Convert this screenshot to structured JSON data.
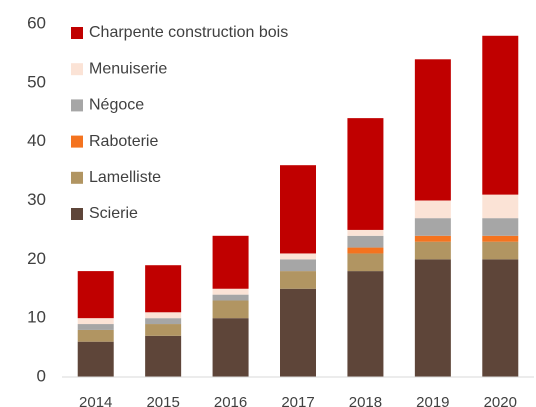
{
  "chart_data": {
    "type": "bar",
    "stacked": true,
    "categories": [
      "2014",
      "2015",
      "2016",
      "2017",
      "2018",
      "2019",
      "2020"
    ],
    "series": [
      {
        "name": "Scierie",
        "color": "#5e4539",
        "values": [
          6,
          7,
          10,
          15,
          18,
          20,
          20
        ]
      },
      {
        "name": "Lamelliste",
        "color": "#b19562",
        "values": [
          2,
          2,
          3,
          3,
          3,
          3,
          3
        ]
      },
      {
        "name": "Raboterie",
        "color": "#f4731f",
        "values": [
          0,
          0,
          0,
          0,
          1,
          1,
          1
        ]
      },
      {
        "name": "Négoce",
        "color": "#a6a6a6",
        "values": [
          1,
          1,
          1,
          2,
          2,
          3,
          3
        ]
      },
      {
        "name": "Menuiserie",
        "color": "#fbe3d6",
        "values": [
          1,
          1,
          1,
          1,
          1,
          3,
          4
        ]
      },
      {
        "name": "Charpente construction bois",
        "color": "#c00000",
        "values": [
          8,
          8,
          9,
          15,
          19,
          24,
          27
        ]
      }
    ],
    "ylim": [
      0,
      60
    ],
    "yticks": [
      0,
      10,
      20,
      30,
      40,
      50,
      60
    ],
    "grid": false,
    "legend": "top-left"
  }
}
